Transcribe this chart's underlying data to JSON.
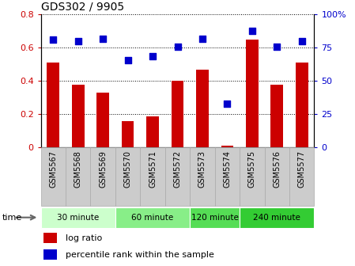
{
  "title": "GDS302 / 9905",
  "categories": [
    "GSM5567",
    "GSM5568",
    "GSM5569",
    "GSM5570",
    "GSM5571",
    "GSM5572",
    "GSM5573",
    "GSM5574",
    "GSM5575",
    "GSM5576",
    "GSM5577"
  ],
  "log_ratio": [
    0.51,
    0.38,
    0.33,
    0.16,
    0.19,
    0.4,
    0.47,
    0.01,
    0.65,
    0.38,
    0.51
  ],
  "percentile_rank": [
    81,
    80,
    82,
    66,
    69,
    76,
    82,
    33,
    88,
    76,
    80
  ],
  "bar_color": "#cc0000",
  "dot_color": "#0000cc",
  "ylim_left": [
    0,
    0.8
  ],
  "ylim_right": [
    0,
    100
  ],
  "yticks_left": [
    0,
    0.2,
    0.4,
    0.6,
    0.8
  ],
  "ytick_labels_left": [
    "0",
    "0.2",
    "0.4",
    "0.6",
    "0.8"
  ],
  "ytick_labels_right": [
    "0",
    "25",
    "50",
    "75",
    "100%"
  ],
  "groups": [
    {
      "label": "30 minute",
      "start": 0,
      "end": 3,
      "color": "#ccffcc"
    },
    {
      "label": "60 minute",
      "start": 3,
      "end": 6,
      "color": "#88ee88"
    },
    {
      "label": "120 minute",
      "start": 6,
      "end": 8,
      "color": "#55dd55"
    },
    {
      "label": "240 minute",
      "start": 8,
      "end": 11,
      "color": "#33cc33"
    }
  ],
  "legend_labels": [
    "log ratio",
    "percentile rank within the sample"
  ],
  "time_label": "time",
  "bg_color": "#ffffff",
  "grid_color": "#000000",
  "tick_label_color_left": "#cc0000",
  "tick_label_color_right": "#0000cc",
  "title_color": "#000000",
  "bar_width": 0.5,
  "dot_size": 35,
  "xtick_bg": "#cccccc",
  "xtick_border": "#aaaaaa"
}
